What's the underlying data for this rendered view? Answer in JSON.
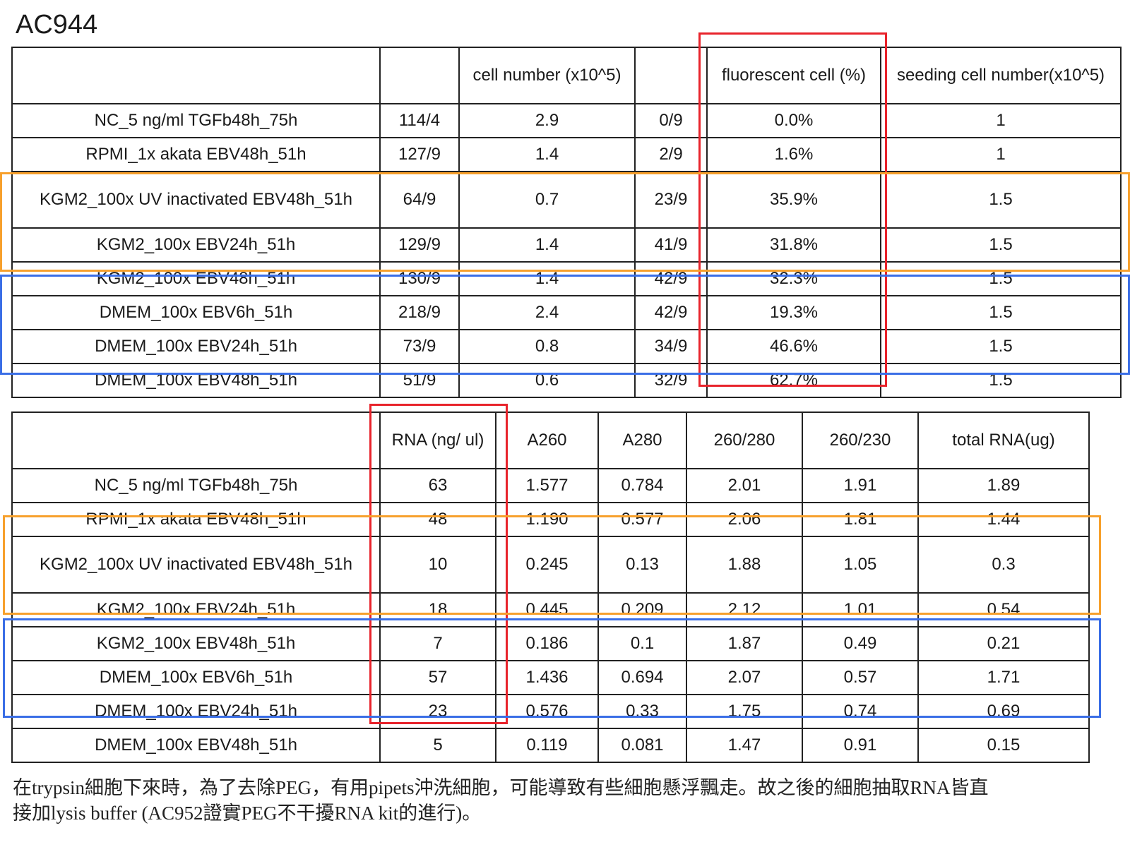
{
  "title": "AC944",
  "table1": {
    "headers": [
      "",
      "",
      "cell number (x10^5)",
      "",
      "fluorescent cell (%)",
      "seeding cell number(x10^5)"
    ],
    "rows": [
      [
        "NC_5 ng/ml TGFb48h_75h",
        "114/4",
        "2.9",
        "0/9",
        "0.0%",
        "1"
      ],
      [
        "RPMI_1x akata EBV48h_51h",
        "127/9",
        "1.4",
        "2/9",
        "1.6%",
        "1"
      ],
      [
        "KGM2_100x UV inactivated EBV48h_51h",
        "64/9",
        "0.7",
        "23/9",
        "35.9%",
        "1.5"
      ],
      [
        "KGM2_100x EBV24h_51h",
        "129/9",
        "1.4",
        "41/9",
        "31.8%",
        "1.5"
      ],
      [
        "KGM2_100x EBV48h_51h",
        "130/9",
        "1.4",
        "42/9",
        "32.3%",
        "1.5"
      ],
      [
        "DMEM_100x EBV6h_51h",
        "218/9",
        "2.4",
        "42/9",
        "19.3%",
        "1.5"
      ],
      [
        "DMEM_100x EBV24h_51h",
        "73/9",
        "0.8",
        "34/9",
        "46.6%",
        "1.5"
      ],
      [
        "DMEM_100x EBV48h_51h",
        "51/9",
        "0.6",
        "32/9",
        "62.7%",
        "1.5"
      ]
    ]
  },
  "table2": {
    "headers": [
      "",
      "RNA (ng/ ul)",
      "A260",
      "A280",
      "260/280",
      "260/230",
      "total RNA(ug)"
    ],
    "rows": [
      [
        "NC_5 ng/ml TGFb48h_75h",
        "63",
        "1.577",
        "0.784",
        "2.01",
        "1.91",
        "1.89"
      ],
      [
        "RPMI_1x akata EBV48h_51h",
        "48",
        "1.190",
        "0.577",
        "2.06",
        "1.81",
        "1.44"
      ],
      [
        "KGM2_100x UV inactivated EBV48h_51h",
        "10",
        "0.245",
        "0.13",
        "1.88",
        "1.05",
        "0.3"
      ],
      [
        "KGM2_100x EBV24h_51h",
        "18",
        "0.445",
        "0.209",
        "2.12",
        "1.01",
        "0.54"
      ],
      [
        "KGM2_100x EBV48h_51h",
        "7",
        "0.186",
        "0.1",
        "1.87",
        "0.49",
        "0.21"
      ],
      [
        "DMEM_100x EBV6h_51h",
        "57",
        "1.436",
        "0.694",
        "2.07",
        "0.57",
        "1.71"
      ],
      [
        "DMEM_100x EBV24h_51h",
        "23",
        "0.576",
        "0.33",
        "1.75",
        "0.74",
        "0.69"
      ],
      [
        "DMEM_100x EBV48h_51h",
        "5",
        "0.119",
        "0.081",
        "1.47",
        "0.91",
        "0.15"
      ]
    ]
  },
  "note": {
    "line1": "在trypsin細胞下來時，為了去除PEG，有用pipets沖洗細胞，可能導致有些細胞懸浮飄走。故之後的細胞抽取RNA皆直",
    "line2": "接加lysis buffer (AC952證實PEG不干擾RNA kit的進行)。"
  },
  "colors": {
    "red_box": "#e8232b",
    "orange_box": "#f7a02c",
    "blue_box": "#3a6ee6"
  }
}
